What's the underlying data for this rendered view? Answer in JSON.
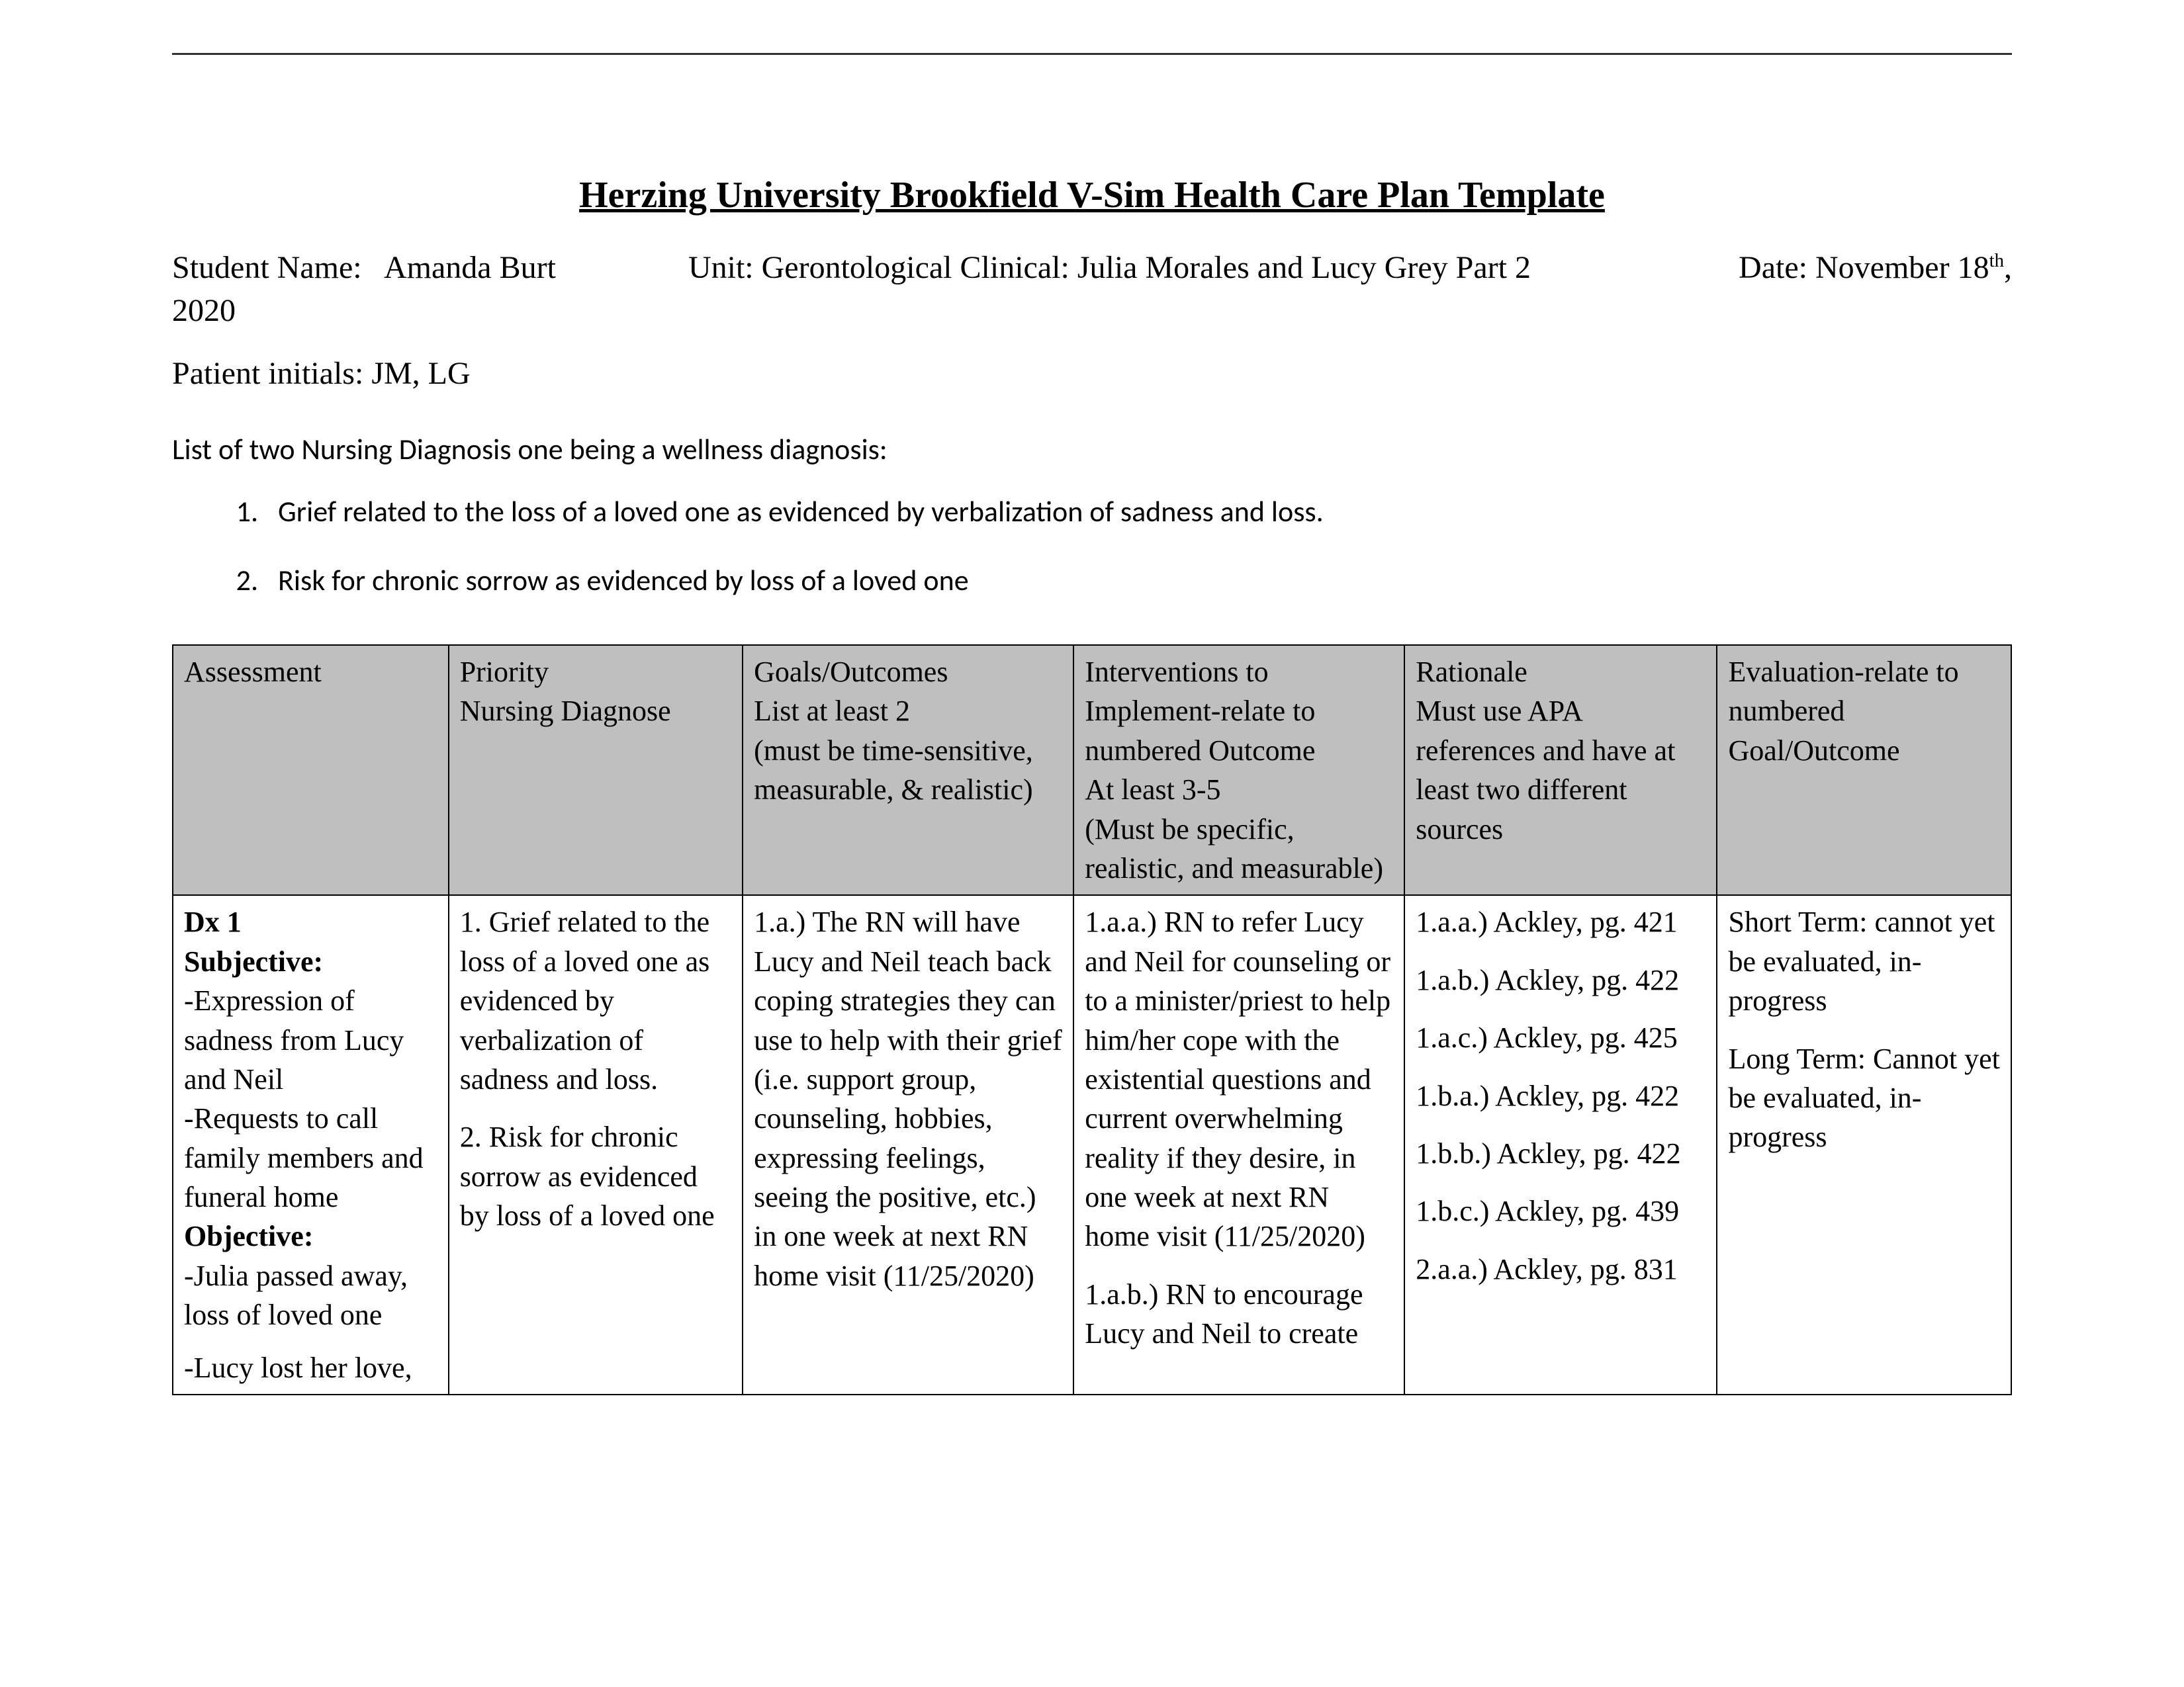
{
  "title": "Herzing University Brookfield V-Sim Health Care Plan Template",
  "meta": {
    "student_label": "Student Name:",
    "student_value": "Amanda Burt",
    "unit_label": "Unit:",
    "unit_value": "Gerontological Clinical: Julia Morales and Lucy Grey Part 2",
    "date_label": "Date:",
    "date_value_prefix": "November 18",
    "date_value_sup": "th",
    "date_value_suffix": ",",
    "year": "2020",
    "patient_initials_label": "Patient initials:",
    "patient_initials_value": "JM, LG"
  },
  "diagnosis_heading": "List of two Nursing Diagnosis one being a wellness diagnosis:",
  "diagnosis_list": [
    "Grief related to the loss of a loved one as evidenced by verbalization of sadness and loss.",
    "Risk for chronic sorrow as evidenced by loss of a loved one"
  ],
  "table": {
    "headers": {
      "assessment": "Assessment",
      "priority": "Priority\nNursing Diagnose",
      "goals": "Goals/Outcomes\nList at least 2\n(must be time-sensitive, measurable, & realistic)",
      "interventions": "Interventions to Implement-relate to numbered Outcome\nAt least 3-5\n(Must be specific, realistic, and measurable)",
      "rationale": "Rationale\nMust use APA references and have at least two different sources",
      "evaluation": "Evaluation-relate to numbered Goal/Outcome"
    },
    "row": {
      "assessment": {
        "dx_label": "Dx 1",
        "subjective_label": "Subjective:",
        "subjective_lines": [
          "-Expression of sadness from Lucy and Neil",
          "-Requests to call family members and funeral home"
        ],
        "objective_label": "Objective:",
        "objective_lines": [
          "-Julia passed away, loss of loved one",
          "-Lucy lost her love,"
        ]
      },
      "priority": [
        "1. Grief related to the loss of a loved one as evidenced by verbalization of sadness and loss.",
        "2. Risk for chronic sorrow as evidenced by loss of a loved one"
      ],
      "goals": "1.a.) The RN will have Lucy and Neil teach back coping strategies they can use to help with their grief (i.e. support group, counseling, hobbies, expressing feelings, seeing the positive, etc.) in one week at next RN home visit (11/25/2020)",
      "interventions": [
        "1.a.a.) RN to refer Lucy and Neil for counseling or to a minister/priest to help him/her cope with the existential questions and current overwhelming reality if they desire, in one week at next RN home visit (11/25/2020)",
        "1.a.b.) RN to encourage Lucy and Neil to create"
      ],
      "rationale": [
        "1.a.a.) Ackley, pg. 421",
        "1.a.b.) Ackley, pg. 422",
        "1.a.c.) Ackley, pg. 425",
        "1.b.a.) Ackley, pg. 422",
        "1.b.b.) Ackley, pg. 422",
        "1.b.c.) Ackley, pg. 439",
        "2.a.a.) Ackley, pg. 831"
      ],
      "evaluation": [
        "Short Term: cannot yet be evaluated, in-progress",
        "Long Term: Cannot yet be evaluated, in-progress"
      ]
    }
  }
}
